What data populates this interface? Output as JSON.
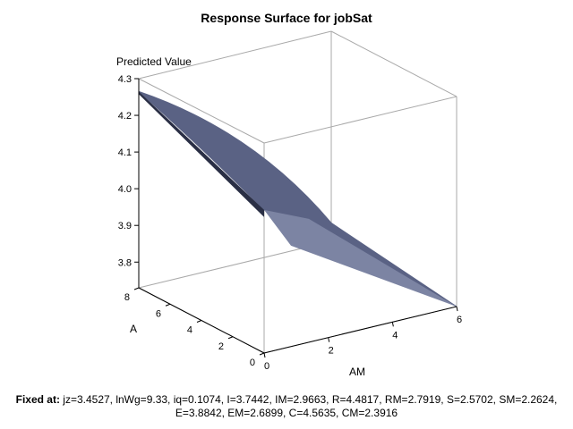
{
  "chart_data": {
    "type": "surface3d",
    "title": "Response Surface for jobSat",
    "zlabel": "Predicted Value",
    "xlabel": "AM",
    "ylabel": "A",
    "x_ticks": [
      0,
      2,
      4,
      6
    ],
    "y_ticks": [
      0,
      2,
      4,
      6,
      8
    ],
    "z_ticks": [
      3.8,
      3.9,
      4.0,
      4.1,
      4.2,
      4.3
    ],
    "xlim": [
      0,
      6
    ],
    "ylim": [
      0,
      8
    ],
    "zlim": [
      3.73,
      4.3
    ],
    "surface_edge_values": [
      {
        "AM": 0,
        "A": 8,
        "value": 4.265
      },
      {
        "AM": 0,
        "A": 0,
        "value": 4.12
      },
      {
        "AM": 6,
        "A": 8,
        "value": 3.78
      },
      {
        "AM": 6,
        "A": 0,
        "value": 3.73
      }
    ],
    "surface_color": "#5a6284"
  },
  "footnote": {
    "label": "Fixed at:",
    "line1": "jz=3.4527, lnWg=9.33, iq=0.1074, I=3.7442, IM=2.9663, R=4.4817, RM=2.7919, S=2.5702, SM=2.2624,",
    "line2": "E=3.8842, EM=2.6899, C=4.5635, CM=2.3916"
  }
}
